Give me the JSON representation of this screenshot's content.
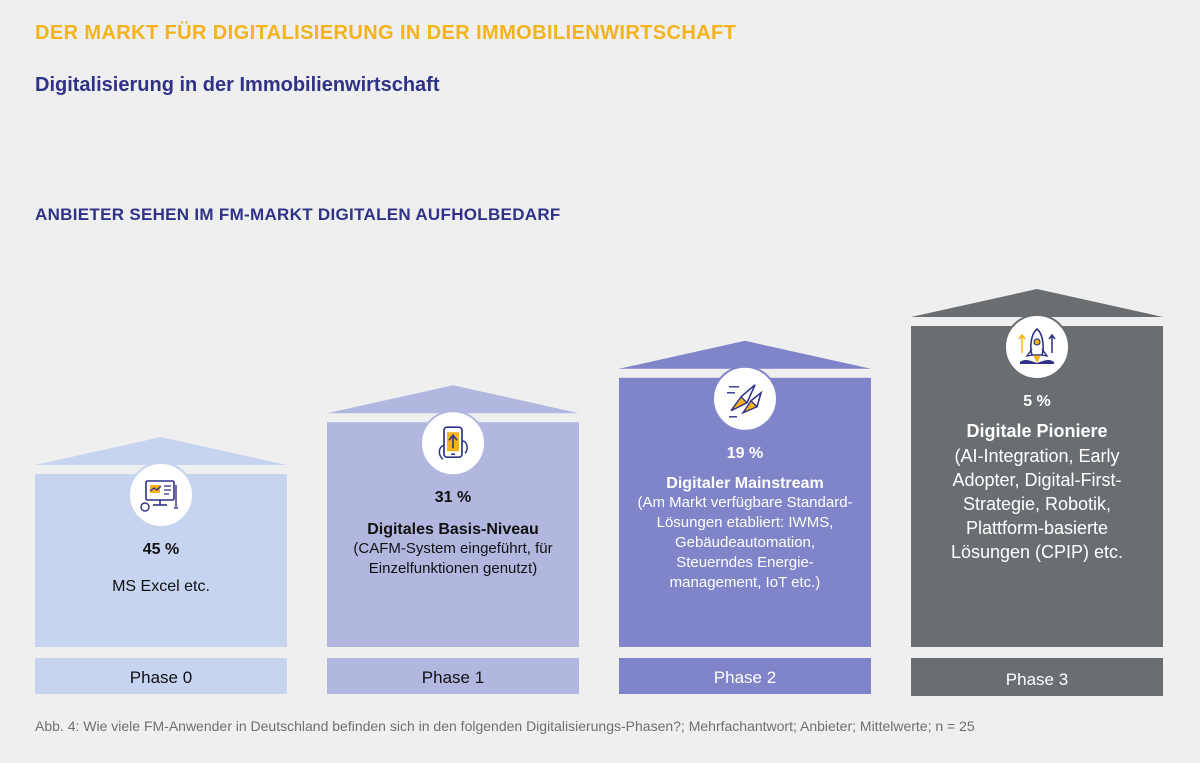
{
  "header": {
    "main_title": "DER MARKT FÜR DIGITALISIERUNG IN DER IMMOBILIENWIRTSCHAFT",
    "subtitle": "Digitalisierung in der Immobilienwirtschaft",
    "section_title": "ANBIETER SEHEN IM FM-MARKT DIGITALEN AUFHOLBEDARF"
  },
  "caption": "Abb. 4: Wie viele FM-Anwender in Deutschland befinden sich in den folgenden Digitalisierungs-Phasen?; Mehrfachantwort; Anbieter; Mittelwerte; n = 25",
  "colors": {
    "accent_yellow": "#f4b21b",
    "accent_navy": "#2f3287",
    "phase0": "#c6d4f0",
    "phase1": "#b2b7e0",
    "phase2": "#7f85c8",
    "phase3": "#6b6e70"
  },
  "chart_data": {
    "type": "bar",
    "title": "ANBIETER SEHEN IM FM-MARKT DIGITALEN AUFHOLBEDARF",
    "categories": [
      "Phase 0",
      "Phase 1",
      "Phase 2",
      "Phase 3"
    ],
    "values": [
      45,
      31,
      19,
      5
    ],
    "unit": "%",
    "phases": [
      {
        "phase": "Phase 0",
        "value": 45,
        "value_label": "45 %",
        "name": "",
        "description": "MS Excel etc.",
        "icon": "computer-chart-icon",
        "color": "#c6d4f0",
        "text_color": "#111111"
      },
      {
        "phase": "Phase 1",
        "value": 31,
        "value_label": "31 %",
        "name": "Digitales Basis-Niveau",
        "description": "(CAFM-System eingeführt, für Einzelfunktionen genutzt)",
        "icon": "smartphone-upload-icon",
        "color": "#b2b7e0",
        "text_color": "#111111"
      },
      {
        "phase": "Phase 2",
        "value": 19,
        "value_label": "19 %",
        "name": "Digitaler Mainstream",
        "description": "(Am Markt verfügbare Standard-Lösungen etabliert: IWMS, Gebäudeautomation, Steuerndes Energie-management, IoT etc.)",
        "icon": "rockets-icon",
        "color": "#7f85c8",
        "text_color": "#ffffff"
      },
      {
        "phase": "Phase 3",
        "value": 5,
        "value_label": "5 %",
        "name": "Digitale Pioniere",
        "description": "(AI-Integration, Early Adopter, Digital-First-Strategie, Robotik, Plattform-basierte Lösungen (CPIP) etc.",
        "icon": "rocket-launch-icon",
        "color": "#6b6e70",
        "text_color": "#ffffff"
      }
    ]
  }
}
